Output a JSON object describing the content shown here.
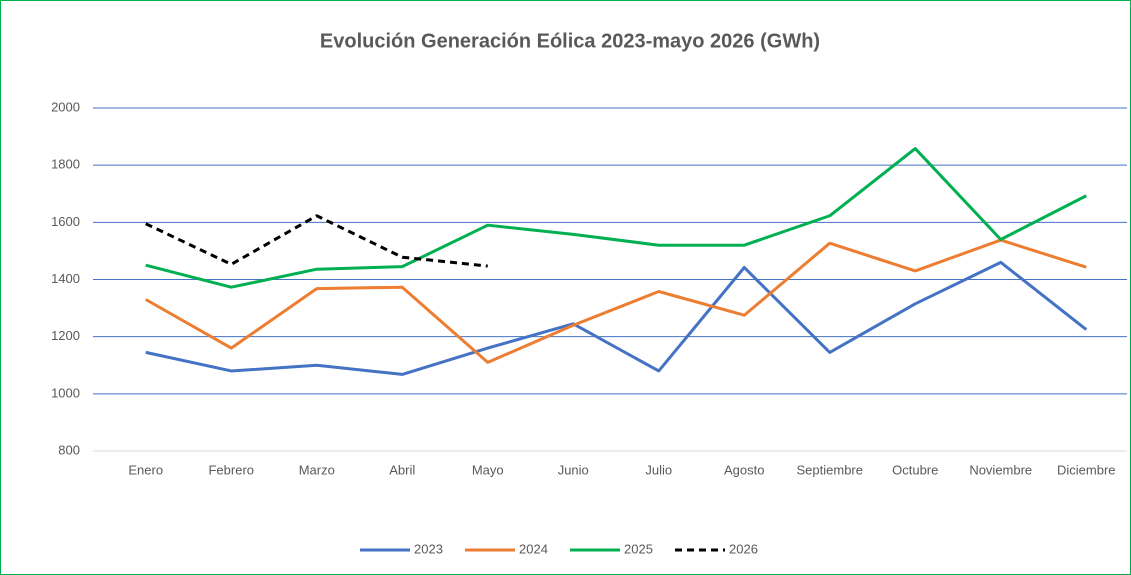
{
  "chart_data": {
    "type": "line",
    "title": "Evolución Generación Eólica 2023-mayo 2026 (GWh)",
    "categories": [
      "Enero",
      "Febrero",
      "Marzo",
      "Abril",
      "Mayo",
      "Junio",
      "Julio",
      "Agosto",
      "Septiembre",
      "Octubre",
      "Noviembre",
      "Diciembre"
    ],
    "series": [
      {
        "name": "2023",
        "color": "#4472c4",
        "values": [
          1145,
          1080,
          1100,
          1068,
          1160,
          1245,
          1080,
          1442,
          1145,
          1315,
          1460,
          1225
        ]
      },
      {
        "name": "2024",
        "color": "#ed7d31",
        "values": [
          1330,
          1160,
          1368,
          1373,
          1110,
          1240,
          1358,
          1275,
          1527,
          1430,
          1538,
          1443
        ]
      },
      {
        "name": "2025",
        "color": "#00b050",
        "values": [
          1450,
          1373,
          1436,
          1445,
          1590,
          1558,
          1520,
          1520,
          1623,
          1858,
          1540,
          1693
        ]
      },
      {
        "name": "2026",
        "color": "#000000",
        "dashed": true,
        "values": [
          1595,
          1453,
          1623,
          1478,
          1447,
          null,
          null,
          null,
          null,
          null,
          null,
          null
        ]
      }
    ],
    "ylim": [
      800,
      2000
    ],
    "yticks": [
      800,
      1000,
      1200,
      1400,
      1600,
      1800,
      2000
    ],
    "grid": true,
    "legend": "bottom"
  }
}
